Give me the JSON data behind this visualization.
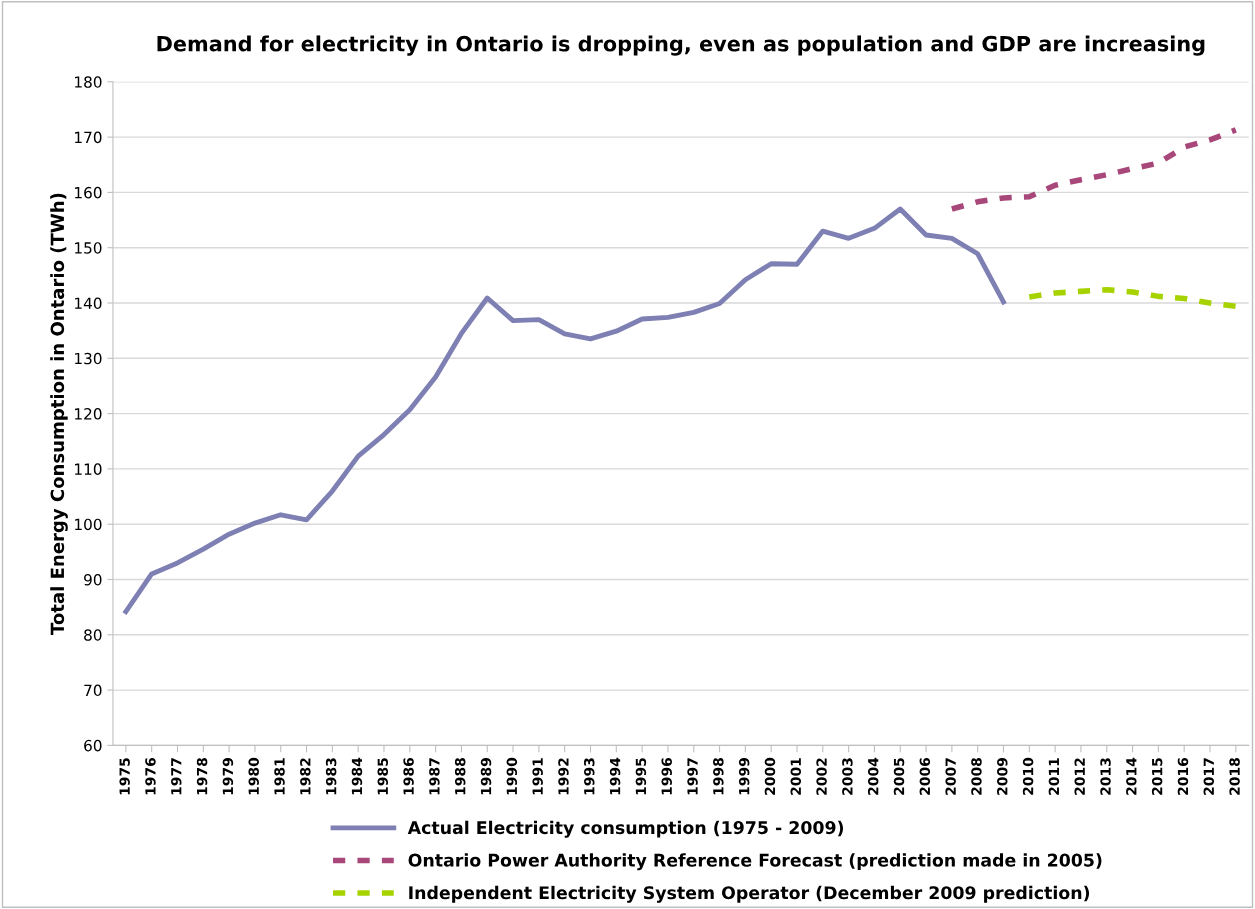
{
  "chart_data": {
    "type": "line",
    "title": "Demand for electricity in Ontario is dropping, even as population and GDP are increasing",
    "ylabel": "Total Energy Consumption in Ontario (TWh)",
    "categories": [
      "1975",
      "1976",
      "1977",
      "1978",
      "1979",
      "1980",
      "1981",
      "1982",
      "1983",
      "1984",
      "1985",
      "1986",
      "1987",
      "1988",
      "1989",
      "1990",
      "1991",
      "1992",
      "1993",
      "1994",
      "1995",
      "1996",
      "1997",
      "1998",
      "1999",
      "2000",
      "2001",
      "2002",
      "2003",
      "2004",
      "2005",
      "2006",
      "2007",
      "2008",
      "2009",
      "2010",
      "2011",
      "2012",
      "2013",
      "2014",
      "2015",
      "2016",
      "2017",
      "2018"
    ],
    "series": [
      {
        "name": "Actual Electricity consumption (1975 - 2009)",
        "color": "#7e7fb2",
        "line_style": "solid",
        "values": [
          84.2,
          91,
          93,
          95.5,
          98.2,
          100.2,
          101.7,
          100.8,
          106,
          112.3,
          116.2,
          120.7,
          126.6,
          134.5,
          140.9,
          136.8,
          137,
          134.4,
          133.5,
          134.9,
          137.1,
          137.4,
          138.3,
          139.9,
          144.2,
          147.1,
          147,
          153,
          151.7,
          153.5,
          157,
          152.3,
          151.7,
          148.9,
          140.2,
          null,
          null,
          null,
          null,
          null,
          null,
          null,
          null,
          null
        ]
      },
      {
        "name": "Ontario Power Authority Reference Forecast (prediction made in 2005)",
        "color": "#a8487a",
        "line_style": "dashed",
        "values": [
          null,
          null,
          null,
          null,
          null,
          null,
          null,
          null,
          null,
          null,
          null,
          null,
          null,
          null,
          null,
          null,
          null,
          null,
          null,
          null,
          null,
          null,
          null,
          null,
          null,
          null,
          null,
          null,
          null,
          null,
          null,
          null,
          157,
          158.3,
          159,
          159.2,
          161.3,
          162.3,
          163.2,
          164.3,
          165.3,
          168.2,
          169.5,
          171.3
        ]
      },
      {
        "name": "Independent Electricity System Operator (December 2009 prediction)",
        "color": "#a6d200",
        "line_style": "dashed",
        "values": [
          null,
          null,
          null,
          null,
          null,
          null,
          null,
          null,
          null,
          null,
          null,
          null,
          null,
          null,
          null,
          null,
          null,
          null,
          null,
          null,
          null,
          null,
          null,
          null,
          null,
          null,
          null,
          null,
          null,
          null,
          null,
          null,
          null,
          null,
          null,
          141.1,
          141.8,
          142.1,
          142.4,
          142,
          141.2,
          140.8,
          140,
          139.4
        ]
      }
    ],
    "ylim": [
      60,
      180
    ],
    "yticks": [
      60,
      70,
      80,
      90,
      100,
      110,
      120,
      130,
      140,
      150,
      160,
      170,
      180
    ],
    "grid": "y",
    "legend": "bottom",
    "marker": "none"
  }
}
